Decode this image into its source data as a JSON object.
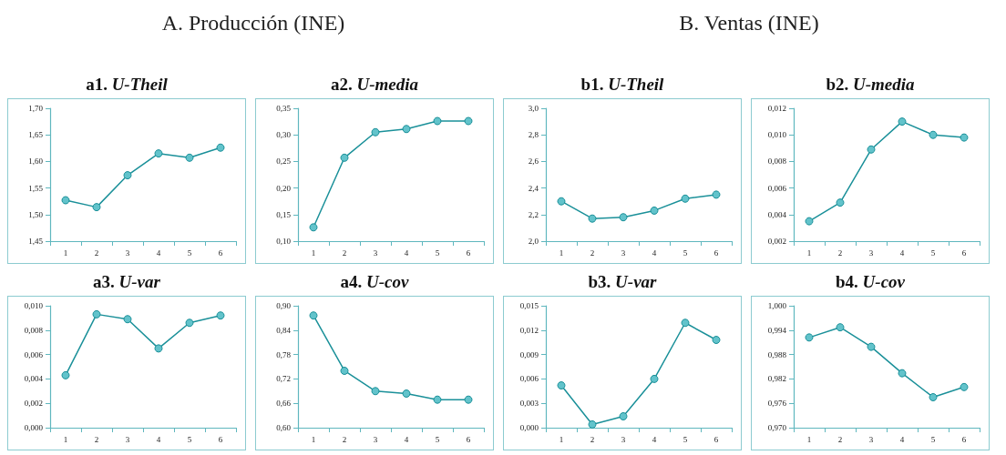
{
  "chart_data": [
    {
      "type": "line",
      "title": "a1. U-Theil",
      "annotations": [
        "A. Producción (INE)"
      ],
      "categories": [
        "1",
        "2",
        "3",
        "4",
        "5",
        "6"
      ],
      "values": [
        1.527,
        1.514,
        1.574,
        1.615,
        1.607,
        1.626
      ],
      "color": "#1a9099",
      "marker": "circle",
      "ylim": [
        1.45,
        1.7
      ],
      "yticks": [
        {
          "value": 1.45,
          "label": "1,45"
        },
        {
          "value": 1.5,
          "label": "1,50"
        },
        {
          "value": 1.55,
          "label": "1,55"
        },
        {
          "value": 1.6,
          "label": "1,60"
        },
        {
          "value": 1.65,
          "label": "1,65"
        },
        {
          "value": 1.7,
          "label": "1,70"
        }
      ]
    },
    {
      "type": "line",
      "title": "a2. U-media",
      "categories": [
        "1",
        "2",
        "3",
        "4",
        "5",
        "6"
      ],
      "values": [
        0.126,
        0.257,
        0.305,
        0.311,
        0.326,
        0.326
      ],
      "color": "#1a9099",
      "marker": "circle",
      "ylim": [
        0.1,
        0.35
      ],
      "yticks": [
        {
          "value": 0.1,
          "label": "0,10"
        },
        {
          "value": 0.15,
          "label": "0,15"
        },
        {
          "value": 0.2,
          "label": "0,20"
        },
        {
          "value": 0.25,
          "label": "0,25"
        },
        {
          "value": 0.3,
          "label": "0,30"
        },
        {
          "value": 0.35,
          "label": "0,35"
        }
      ]
    },
    {
      "type": "line",
      "title": "b1. U-Theil",
      "annotations": [
        "B. Ventas (INE)"
      ],
      "categories": [
        "1",
        "2",
        "3",
        "4",
        "5",
        "6"
      ],
      "values": [
        2.3,
        2.17,
        2.18,
        2.23,
        2.32,
        2.35
      ],
      "color": "#1a9099",
      "marker": "circle",
      "ylim": [
        2.0,
        3.0
      ],
      "yticks": [
        {
          "value": 2.0,
          "label": "2,0"
        },
        {
          "value": 2.2,
          "label": "2,2"
        },
        {
          "value": 2.4,
          "label": "2,4"
        },
        {
          "value": 2.6,
          "label": "2,6"
        },
        {
          "value": 2.8,
          "label": "2,8"
        },
        {
          "value": 3.0,
          "label": "3,0"
        }
      ]
    },
    {
      "type": "line",
      "title": "b2. U-media",
      "categories": [
        "1",
        "2",
        "3",
        "4",
        "5",
        "6"
      ],
      "values": [
        0.0035,
        0.0049,
        0.0089,
        0.011,
        0.01,
        0.0098
      ],
      "color": "#1a9099",
      "marker": "circle",
      "ylim": [
        0.002,
        0.012
      ],
      "yticks": [
        {
          "value": 0.002,
          "label": "0,002"
        },
        {
          "value": 0.004,
          "label": "0,004"
        },
        {
          "value": 0.006,
          "label": "0,006"
        },
        {
          "value": 0.008,
          "label": "0,008"
        },
        {
          "value": 0.01,
          "label": "0,010"
        },
        {
          "value": 0.012,
          "label": "0,012"
        }
      ]
    },
    {
      "type": "line",
      "title": "a3. U-var",
      "categories": [
        "1",
        "2",
        "3",
        "4",
        "5",
        "6"
      ],
      "values": [
        0.0043,
        0.0093,
        0.0089,
        0.0065,
        0.0086,
        0.0092
      ],
      "color": "#1a9099",
      "marker": "circle",
      "ylim": [
        0.0,
        0.01
      ],
      "yticks": [
        {
          "value": 0.0,
          "label": "0,000"
        },
        {
          "value": 0.002,
          "label": "0,002"
        },
        {
          "value": 0.004,
          "label": "0,004"
        },
        {
          "value": 0.006,
          "label": "0,006"
        },
        {
          "value": 0.008,
          "label": "0,008"
        },
        {
          "value": 0.01,
          "label": "0,010"
        }
      ]
    },
    {
      "type": "line",
      "title": "a4. U-cov",
      "categories": [
        "1",
        "2",
        "3",
        "4",
        "5",
        "6"
      ],
      "values": [
        0.876,
        0.74,
        0.69,
        0.684,
        0.669,
        0.669
      ],
      "color": "#1a9099",
      "marker": "circle",
      "ylim": [
        0.6,
        0.9
      ],
      "yticks": [
        {
          "value": 0.6,
          "label": "0,60"
        },
        {
          "value": 0.66,
          "label": "0,66"
        },
        {
          "value": 0.72,
          "label": "0,72"
        },
        {
          "value": 0.78,
          "label": "0,78"
        },
        {
          "value": 0.84,
          "label": "0,84"
        },
        {
          "value": 0.9,
          "label": "0,90"
        }
      ]
    },
    {
      "type": "line",
      "title": "b3. U-var",
      "categories": [
        "1",
        "2",
        "3",
        "4",
        "5",
        "6"
      ],
      "values": [
        0.0052,
        0.0004,
        0.0014,
        0.006,
        0.0129,
        0.0108
      ],
      "color": "#1a9099",
      "marker": "circle",
      "ylim": [
        0.0,
        0.015
      ],
      "yticks": [
        {
          "value": 0.0,
          "label": "0,000"
        },
        {
          "value": 0.003,
          "label": "0,003"
        },
        {
          "value": 0.006,
          "label": "0,006"
        },
        {
          "value": 0.009,
          "label": "0,009"
        },
        {
          "value": 0.012,
          "label": "0,012"
        },
        {
          "value": 0.015,
          "label": "0,015"
        }
      ]
    },
    {
      "type": "line",
      "title": "b4. U-cov",
      "categories": [
        "1",
        "2",
        "3",
        "4",
        "5",
        "6"
      ],
      "values": [
        0.9922,
        0.9947,
        0.9899,
        0.9834,
        0.9775,
        0.98
      ],
      "color": "#1a9099",
      "marker": "circle",
      "ylim": [
        0.97,
        1.0
      ],
      "yticks": [
        {
          "value": 0.97,
          "label": "0,970"
        },
        {
          "value": 0.976,
          "label": "0,976"
        },
        {
          "value": 0.982,
          "label": "0,982"
        },
        {
          "value": 0.988,
          "label": "0,988"
        },
        {
          "value": 0.994,
          "label": "0,994"
        },
        {
          "value": 1.0,
          "label": "1,000"
        }
      ]
    }
  ]
}
